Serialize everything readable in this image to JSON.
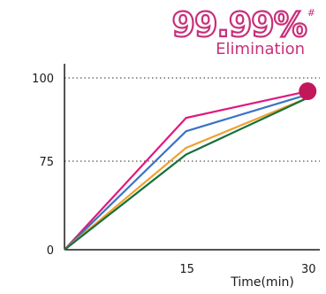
{
  "hero": {
    "value": "99.99%",
    "mark": "#",
    "label": "Elimination"
  },
  "chart_data": {
    "type": "line",
    "title": "",
    "xlabel": "Time(min)",
    "ylabel": "",
    "x": [
      0,
      15,
      30
    ],
    "x_ticks": [
      "15",
      "30"
    ],
    "y_ticks": [
      "0",
      "75",
      "100"
    ],
    "series": [
      {
        "values": [
          0,
          88,
          96
        ],
        "color": "#e0197d"
      },
      {
        "values": [
          0,
          84,
          95
        ],
        "color": "#3a73c4"
      },
      {
        "values": [
          0,
          79,
          94
        ],
        "color": "#f0a030"
      },
      {
        "values": [
          0,
          77,
          94
        ],
        "color": "#17703a"
      }
    ],
    "endpoint_marker": {
      "x": 30,
      "y": 96,
      "color": "#c2185b"
    },
    "grid": "dotted at 75 and 100"
  }
}
